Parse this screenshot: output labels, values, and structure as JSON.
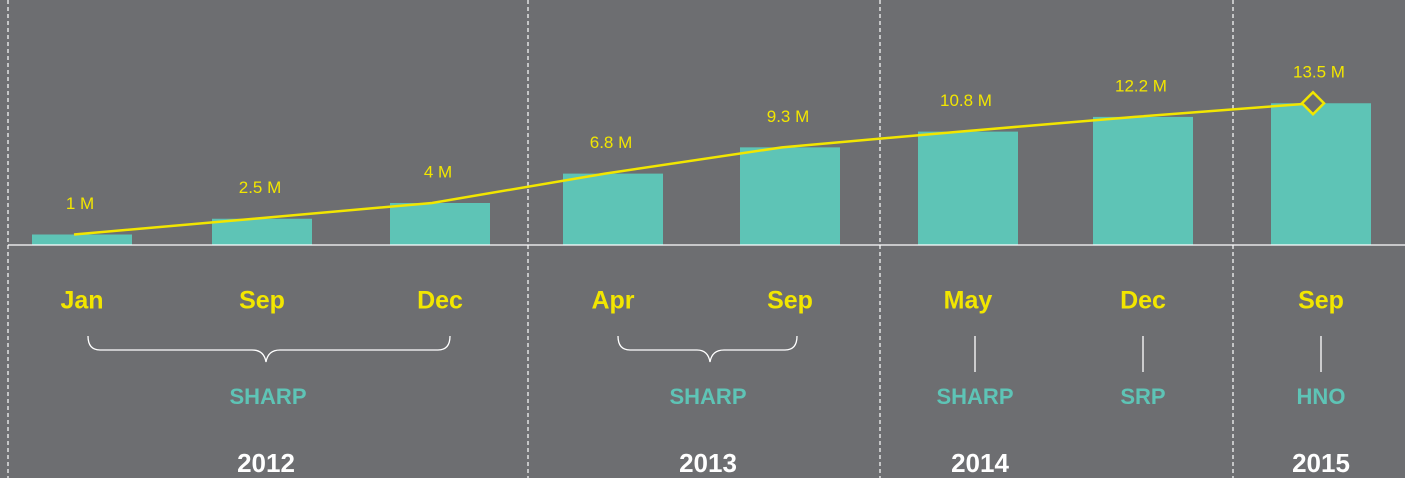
{
  "chart_data": {
    "type": "bar",
    "overlay_line": true,
    "categories": [
      "Jan",
      "Sep",
      "Dec",
      "Apr",
      "Sep",
      "May",
      "Dec",
      "Sep"
    ],
    "values": [
      1,
      2.5,
      4,
      6.8,
      9.3,
      10.8,
      12.2,
      13.5
    ],
    "value_labels": [
      "1 M",
      "2.5 M",
      "4 M",
      "6.8 M",
      "9.3 M",
      "10.8 M",
      "12.2 M",
      "13.5 M"
    ],
    "color": "#5ec4b6",
    "line_color": "#f2e600",
    "groups": [
      "SHARP",
      "SHARP",
      "SHARP",
      "SRP",
      "HNO"
    ],
    "years": [
      "2012",
      "2013",
      "2014",
      "2015"
    ]
  }
}
